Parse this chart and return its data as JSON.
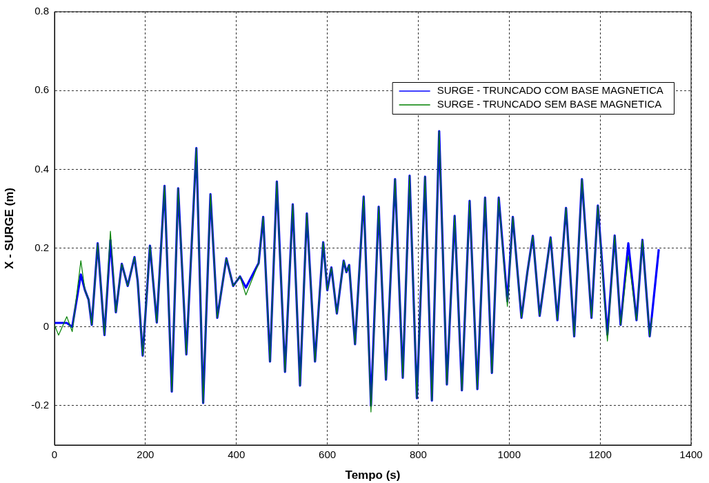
{
  "chart_data": {
    "type": "line",
    "xlabel": "Tempo (s)",
    "ylabel": "X - SURGE (m)",
    "x": [
      0,
      9,
      27,
      39,
      58,
      67,
      75,
      82,
      95,
      110,
      123,
      135,
      148,
      161,
      176,
      183,
      194,
      210,
      225,
      242,
      258,
      272,
      290,
      312,
      327,
      343,
      358,
      378,
      393,
      408,
      421,
      449,
      459,
      474,
      489,
      507,
      524,
      540,
      555,
      573,
      591,
      600,
      609,
      621,
      636,
      642,
      648,
      661,
      680,
      696,
      713,
      729,
      749,
      766,
      781,
      797,
      815,
      830,
      846,
      863,
      880,
      896,
      913,
      930,
      947,
      962,
      977,
      996,
      1008,
      1027,
      1040,
      1052,
      1067,
      1091,
      1106,
      1125,
      1143,
      1160,
      1181,
      1195,
      1216,
      1232,
      1245,
      1262,
      1280,
      1293,
      1309,
      1314,
      1329
    ],
    "series": [
      {
        "name": "SURGE - TRUNCADO COM BASE MAGNETICA",
        "color": "#0000ff",
        "values": [
          0.01,
          0.01,
          0.01,
          0.0,
          0.133,
          0.093,
          0.069,
          0.005,
          0.212,
          -0.021,
          0.22,
          0.037,
          0.16,
          0.104,
          0.177,
          0.116,
          -0.073,
          0.206,
          0.011,
          0.358,
          -0.164,
          0.352,
          -0.07,
          0.454,
          -0.193,
          0.337,
          0.023,
          0.174,
          0.104,
          0.128,
          0.1,
          0.162,
          0.279,
          -0.088,
          0.369,
          -0.114,
          0.311,
          -0.149,
          0.288,
          -0.088,
          0.215,
          0.093,
          0.151,
          0.034,
          0.168,
          0.139,
          0.157,
          -0.044,
          0.331,
          -0.2,
          0.305,
          -0.134,
          0.375,
          -0.129,
          0.384,
          -0.181,
          0.381,
          -0.187,
          0.497,
          -0.146,
          0.282,
          -0.161,
          0.32,
          -0.158,
          0.328,
          -0.117,
          0.328,
          0.065,
          0.279,
          0.023,
          0.139,
          0.231,
          0.028,
          0.227,
          0.017,
          0.302,
          -0.024,
          0.375,
          0.023,
          0.308,
          -0.02,
          0.232,
          0.005,
          0.212,
          0.017,
          0.221,
          -0.024,
          0.03,
          0.197
        ]
      },
      {
        "name": "SURGE - TRUNCADO SEM BASE MAGNETICA",
        "color": "#008000",
        "values": [
          0.005,
          -0.021,
          0.026,
          -0.012,
          0.168,
          0.093,
          0.069,
          0.005,
          0.212,
          -0.021,
          0.243,
          0.037,
          0.16,
          0.104,
          0.177,
          0.116,
          -0.073,
          0.206,
          0.011,
          0.358,
          -0.164,
          0.352,
          -0.07,
          0.454,
          -0.193,
          0.337,
          0.023,
          0.174,
          0.104,
          0.128,
          0.081,
          0.162,
          0.279,
          -0.088,
          0.369,
          -0.114,
          0.311,
          -0.149,
          0.288,
          -0.088,
          0.215,
          0.093,
          0.151,
          0.034,
          0.168,
          0.139,
          0.157,
          -0.044,
          0.331,
          -0.216,
          0.305,
          -0.134,
          0.375,
          -0.129,
          0.384,
          -0.181,
          0.381,
          -0.187,
          0.497,
          -0.146,
          0.282,
          -0.161,
          0.32,
          -0.158,
          0.328,
          -0.117,
          0.328,
          0.052,
          0.279,
          0.023,
          0.139,
          0.231,
          0.028,
          0.227,
          0.017,
          0.302,
          -0.024,
          0.375,
          0.023,
          0.308,
          -0.036,
          0.232,
          0.005,
          0.18,
          0.017,
          0.221,
          -0.024,
          0.023,
          null
        ]
      }
    ],
    "xlim": [
      0,
      1400
    ],
    "xticks": [
      0,
      200,
      400,
      600,
      800,
      1000,
      1200,
      1400
    ],
    "ylim": [
      -0.3,
      0.8
    ],
    "yticks": [
      -0.2,
      0,
      0.2,
      0.4,
      0.6,
      0.8
    ],
    "grid": true,
    "legend": "top right",
    "marker": "none",
    "line_style": "solid"
  }
}
